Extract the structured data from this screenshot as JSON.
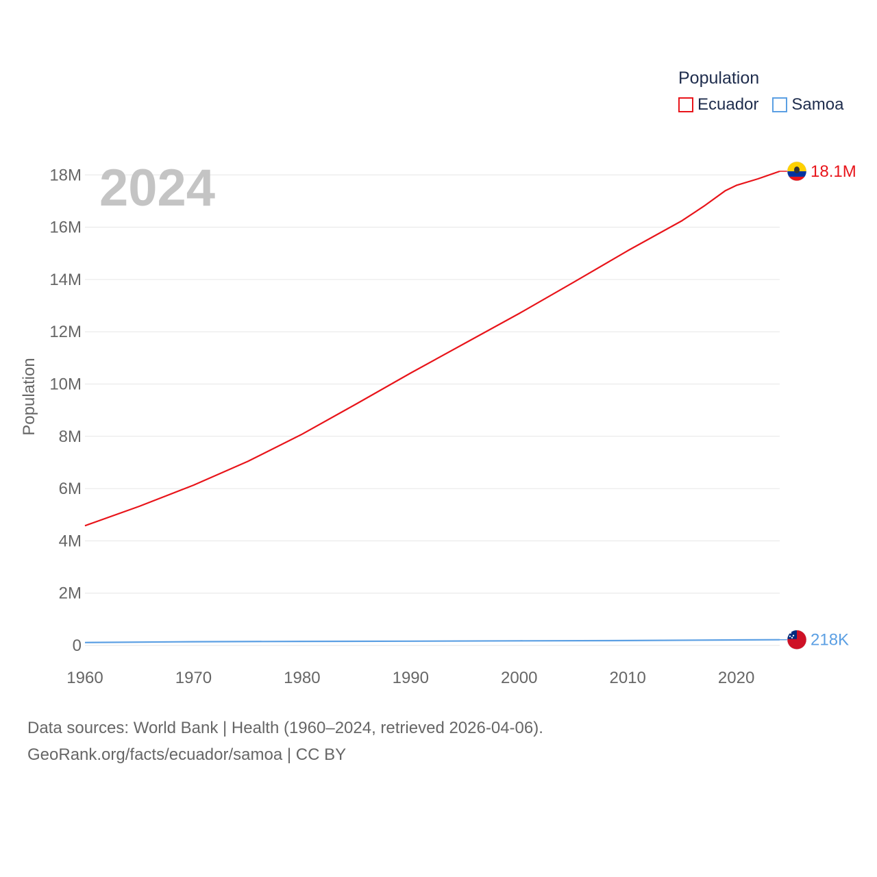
{
  "legend": {
    "title": "Population",
    "items": [
      {
        "label": "Ecuador",
        "color": "#e8141a"
      },
      {
        "label": "Samoa",
        "color": "#5b9fe3"
      }
    ]
  },
  "year_watermark": "2024",
  "footer": {
    "line1": "Data sources: World Bank | Health (1960–2024, retrieved 2026-04-06).",
    "line2": "GeoRank.org/facts/ecuador/samoa | CC BY"
  },
  "chart_data": {
    "type": "line",
    "title": "Population",
    "xlabel": "",
    "ylabel": "Population",
    "xlim": [
      1960,
      2024
    ],
    "ylim": [
      0,
      19000000
    ],
    "x_ticks": [
      1960,
      1970,
      1980,
      1990,
      2000,
      2010,
      2020
    ],
    "y_ticks": [
      {
        "value": 0,
        "label": "0"
      },
      {
        "value": 2000000,
        "label": "2M"
      },
      {
        "value": 4000000,
        "label": "4M"
      },
      {
        "value": 6000000,
        "label": "6M"
      },
      {
        "value": 8000000,
        "label": "8M"
      },
      {
        "value": 10000000,
        "label": "10M"
      },
      {
        "value": 12000000,
        "label": "12M"
      },
      {
        "value": 14000000,
        "label": "14M"
      },
      {
        "value": 16000000,
        "label": "16M"
      },
      {
        "value": 18000000,
        "label": "18M"
      }
    ],
    "grid": true,
    "series": [
      {
        "name": "Ecuador",
        "color": "#e8141a",
        "end_label": "18.1M",
        "flag_icon": "ecuador-flag-icon",
        "x": [
          1960,
          1965,
          1970,
          1975,
          1980,
          1985,
          1990,
          1995,
          2000,
          2005,
          2010,
          2015,
          2017,
          2019,
          2020,
          2022,
          2024
        ],
        "values": [
          4580000,
          5320000,
          6130000,
          7040000,
          8080000,
          9240000,
          10420000,
          11560000,
          12700000,
          13890000,
          15100000,
          16250000,
          16800000,
          17400000,
          17600000,
          17850000,
          18140000
        ]
      },
      {
        "name": "Samoa",
        "color": "#5b9fe3",
        "end_label": "218K",
        "flag_icon": "samoa-flag-icon",
        "x": [
          1960,
          1970,
          1980,
          1990,
          2000,
          2010,
          2020,
          2024
        ],
        "values": [
          109000,
          142000,
          155000,
          163000,
          175000,
          185000,
          210000,
          218000
        ]
      }
    ]
  }
}
